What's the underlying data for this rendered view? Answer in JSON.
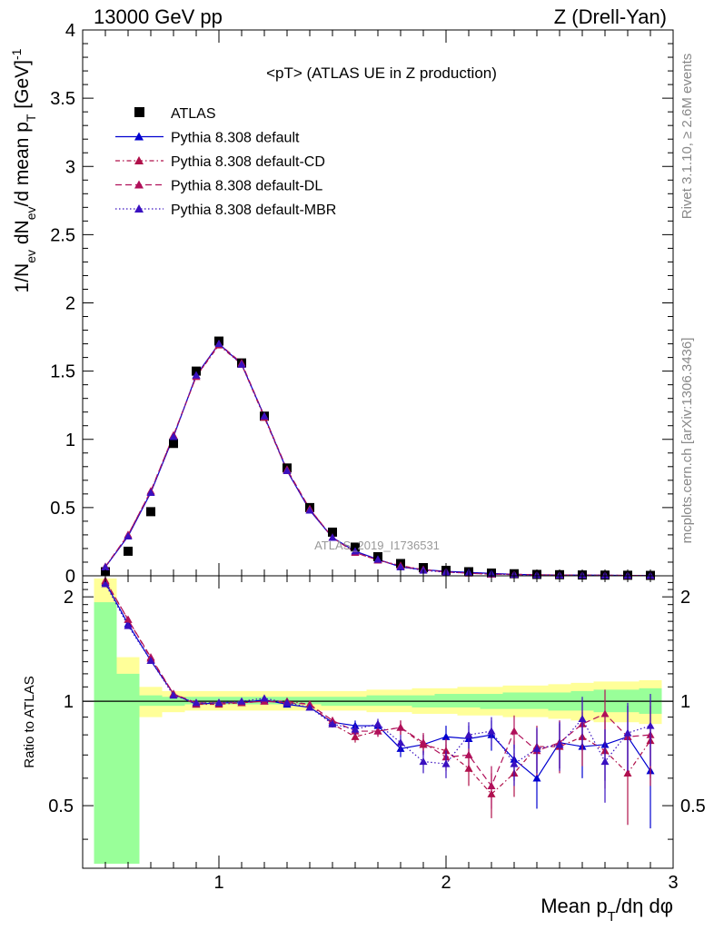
{
  "header": {
    "left": "13000 GeV pp",
    "right": "Z (Drell-Yan)"
  },
  "side_labels": {
    "rivet": "Rivet 3.1.10, ≥ 2.6M events",
    "mcplots": "mcplots.cern.ch [arXiv:1306.3436]"
  },
  "watermark": "ATLAS_2019_I1736531",
  "chart_data": [
    {
      "type": "scatter",
      "title": "<pT> (ATLAS UE in Z production)",
      "ylabel": "1/N_ev dN_ev/d mean p_T [GeV]^-1",
      "xlabel": "",
      "xlim": [
        0.4,
        3.0
      ],
      "ylim": [
        0,
        4.0
      ],
      "y_ticks": [
        "0",
        "0.5",
        "1",
        "1.5",
        "2",
        "2.5",
        "3",
        "3.5",
        "4"
      ],
      "legend_position": "top-left",
      "x": [
        0.5,
        0.6,
        0.7,
        0.8,
        0.9,
        1.0,
        1.1,
        1.2,
        1.3,
        1.4,
        1.5,
        1.6,
        1.7,
        1.8,
        1.9,
        2.0,
        2.1,
        2.2,
        2.3,
        2.4,
        2.5,
        2.6,
        2.7,
        2.8,
        2.9
      ],
      "series": [
        {
          "name": "ATLAS",
          "color": "#000000",
          "marker": "square",
          "values": [
            0.03,
            0.18,
            0.47,
            0.97,
            1.5,
            1.72,
            1.56,
            1.17,
            0.79,
            0.5,
            0.32,
            0.21,
            0.14,
            0.09,
            0.06,
            0.04,
            0.03,
            0.02,
            0.015,
            0.01,
            0.008,
            0.006,
            0.005,
            0.004,
            0.003
          ]
        },
        {
          "name": "Pythia 8.308 default",
          "color": "#0000d0",
          "marker": "triangle",
          "dash": "",
          "values": [
            0.065,
            0.29,
            0.61,
            1.02,
            1.47,
            1.7,
            1.55,
            1.17,
            0.77,
            0.48,
            0.28,
            0.18,
            0.12,
            0.065,
            0.045,
            0.033,
            0.025,
            0.018,
            0.011,
            0.007,
            0.006,
            0.005,
            0.004,
            0.003,
            0.002
          ]
        },
        {
          "name": "Pythia 8.308 default-CD",
          "color": "#b0104a",
          "marker": "triangle",
          "dash": "5,3,1.5,3",
          "values": [
            0.066,
            0.3,
            0.62,
            1.03,
            1.46,
            1.69,
            1.55,
            1.16,
            0.77,
            0.49,
            0.28,
            0.17,
            0.115,
            0.075,
            0.045,
            0.028,
            0.019,
            0.012,
            0.009,
            0.007,
            0.006,
            0.004,
            0.004,
            0.0025,
            0.002
          ]
        },
        {
          "name": "Pythia 8.308 default-DL",
          "color": "#b0105a",
          "marker": "triangle",
          "dash": "7,4",
          "values": [
            0.067,
            0.3,
            0.62,
            1.03,
            1.46,
            1.7,
            1.56,
            1.17,
            0.78,
            0.49,
            0.28,
            0.17,
            0.115,
            0.07,
            0.045,
            0.028,
            0.02,
            0.011,
            0.012,
            0.007,
            0.006,
            0.005,
            0.004,
            0.003,
            0.002
          ]
        },
        {
          "name": "Pythia 8.308 default-MBR",
          "color": "#3a10c0",
          "marker": "triangle",
          "dash": "1.5,2.5",
          "values": [
            0.064,
            0.29,
            0.61,
            1.02,
            1.47,
            1.7,
            1.55,
            1.17,
            0.77,
            0.48,
            0.28,
            0.18,
            0.12,
            0.065,
            0.04,
            0.026,
            0.022,
            0.016,
            0.009,
            0.007,
            0.005,
            0.005,
            0.003,
            0.003,
            0.0025
          ]
        }
      ]
    },
    {
      "type": "scatter",
      "title": "",
      "ylabel": "Ratio to ATLAS",
      "xlabel": "Mean p_T/dη dφ",
      "xlim": [
        0.4,
        3.0
      ],
      "ylim": [
        0.33,
        2.3
      ],
      "y_ticks": [
        "0.5",
        "1",
        "2"
      ],
      "x_ticks": [
        "1",
        "2",
        "3"
      ],
      "reference_line": 1,
      "bin_edges": [
        0.45,
        0.55,
        0.65,
        0.75,
        0.85,
        0.95,
        1.05,
        1.15,
        1.25,
        1.35,
        1.45,
        1.55,
        1.65,
        1.75,
        1.85,
        1.95,
        2.05,
        2.15,
        2.25,
        2.35,
        2.45,
        2.55,
        2.65,
        2.75,
        2.85,
        2.95
      ],
      "bands": {
        "total_uncertainty_color": "#ffff99",
        "stat_uncertainty_color": "#99ff99",
        "yellow_low": [
          0.34,
          0.78,
          0.9,
          0.93,
          0.94,
          0.94,
          0.94,
          0.94,
          0.94,
          0.94,
          0.94,
          0.94,
          0.93,
          0.93,
          0.92,
          0.92,
          0.91,
          0.91,
          0.9,
          0.9,
          0.89,
          0.88,
          0.87,
          0.87,
          0.86
        ],
        "yellow_high": [
          2.26,
          1.34,
          1.1,
          1.07,
          1.07,
          1.07,
          1.07,
          1.07,
          1.07,
          1.07,
          1.07,
          1.07,
          1.08,
          1.08,
          1.09,
          1.09,
          1.1,
          1.1,
          1.11,
          1.11,
          1.12,
          1.13,
          1.14,
          1.14,
          1.15
        ],
        "green_low": [
          0.34,
          0.34,
          0.97,
          0.97,
          0.98,
          0.98,
          0.98,
          0.98,
          0.98,
          0.98,
          0.97,
          0.97,
          0.97,
          0.97,
          0.96,
          0.96,
          0.96,
          0.95,
          0.95,
          0.95,
          0.94,
          0.94,
          0.93,
          0.93,
          0.92
        ],
        "green_high": [
          1.93,
          1.2,
          1.04,
          1.03,
          1.03,
          1.03,
          1.03,
          1.03,
          1.03,
          1.03,
          1.03,
          1.03,
          1.04,
          1.04,
          1.04,
          1.05,
          1.05,
          1.05,
          1.06,
          1.06,
          1.06,
          1.07,
          1.08,
          1.08,
          1.09
        ]
      },
      "series": [
        {
          "name": "Pythia 8.308 default",
          "values": [
            2.2,
            1.67,
            1.31,
            1.05,
            0.98,
            0.99,
            0.99,
            1.01,
            0.98,
            0.96,
            0.87,
            0.85,
            0.85,
            0.73,
            0.75,
            0.79,
            0.78,
            0.8,
            0.68,
            0.6,
            0.76,
            0.74,
            0.75,
            0.79,
            0.63
          ],
          "errors": [
            0.03,
            0.02,
            0.02,
            0.01,
            0.01,
            0.01,
            0.01,
            0.01,
            0.01,
            0.01,
            0.02,
            0.03,
            0.03,
            0.04,
            0.05,
            0.06,
            0.07,
            0.08,
            0.09,
            0.11,
            0.12,
            0.14,
            0.16,
            0.18,
            0.2
          ]
        },
        {
          "name": "Pythia 8.308 default-CD",
          "values": [
            2.22,
            1.72,
            1.33,
            1.05,
            0.98,
            0.98,
            0.99,
            1.0,
            1.0,
            0.98,
            0.86,
            0.79,
            0.82,
            0.84,
            0.75,
            0.72,
            0.64,
            0.54,
            0.62,
            0.74,
            0.74,
            0.79,
            0.72,
            0.62,
            0.77
          ],
          "errors": [
            0.03,
            0.02,
            0.02,
            0.01,
            0.01,
            0.01,
            0.01,
            0.01,
            0.01,
            0.01,
            0.02,
            0.03,
            0.03,
            0.04,
            0.05,
            0.06,
            0.07,
            0.08,
            0.09,
            0.11,
            0.12,
            0.14,
            0.16,
            0.18,
            0.2
          ]
        },
        {
          "name": "Pythia 8.308 default-DL",
          "values": [
            2.23,
            1.72,
            1.34,
            1.05,
            0.99,
            0.99,
            0.99,
            1.0,
            0.99,
            0.98,
            0.88,
            0.82,
            0.82,
            0.84,
            0.76,
            0.69,
            0.7,
            0.57,
            0.82,
            0.72,
            0.76,
            0.86,
            0.92,
            0.79,
            0.8
          ],
          "errors": [
            0.03,
            0.02,
            0.02,
            0.01,
            0.01,
            0.01,
            0.01,
            0.01,
            0.01,
            0.01,
            0.02,
            0.03,
            0.03,
            0.04,
            0.05,
            0.06,
            0.07,
            0.08,
            0.09,
            0.11,
            0.12,
            0.14,
            0.16,
            0.18,
            0.2
          ]
        },
        {
          "name": "Pythia 8.308 default-MBR",
          "values": [
            2.18,
            1.65,
            1.31,
            1.04,
            0.99,
            0.99,
            1.0,
            1.02,
            0.99,
            0.96,
            0.86,
            0.83,
            0.86,
            0.76,
            0.67,
            0.66,
            0.8,
            0.82,
            0.66,
            0.73,
            0.75,
            0.89,
            0.67,
            0.81,
            0.85
          ],
          "errors": [
            0.03,
            0.02,
            0.02,
            0.01,
            0.01,
            0.01,
            0.01,
            0.01,
            0.01,
            0.01,
            0.02,
            0.03,
            0.03,
            0.04,
            0.05,
            0.06,
            0.07,
            0.08,
            0.09,
            0.11,
            0.12,
            0.14,
            0.16,
            0.18,
            0.2
          ]
        }
      ]
    }
  ]
}
